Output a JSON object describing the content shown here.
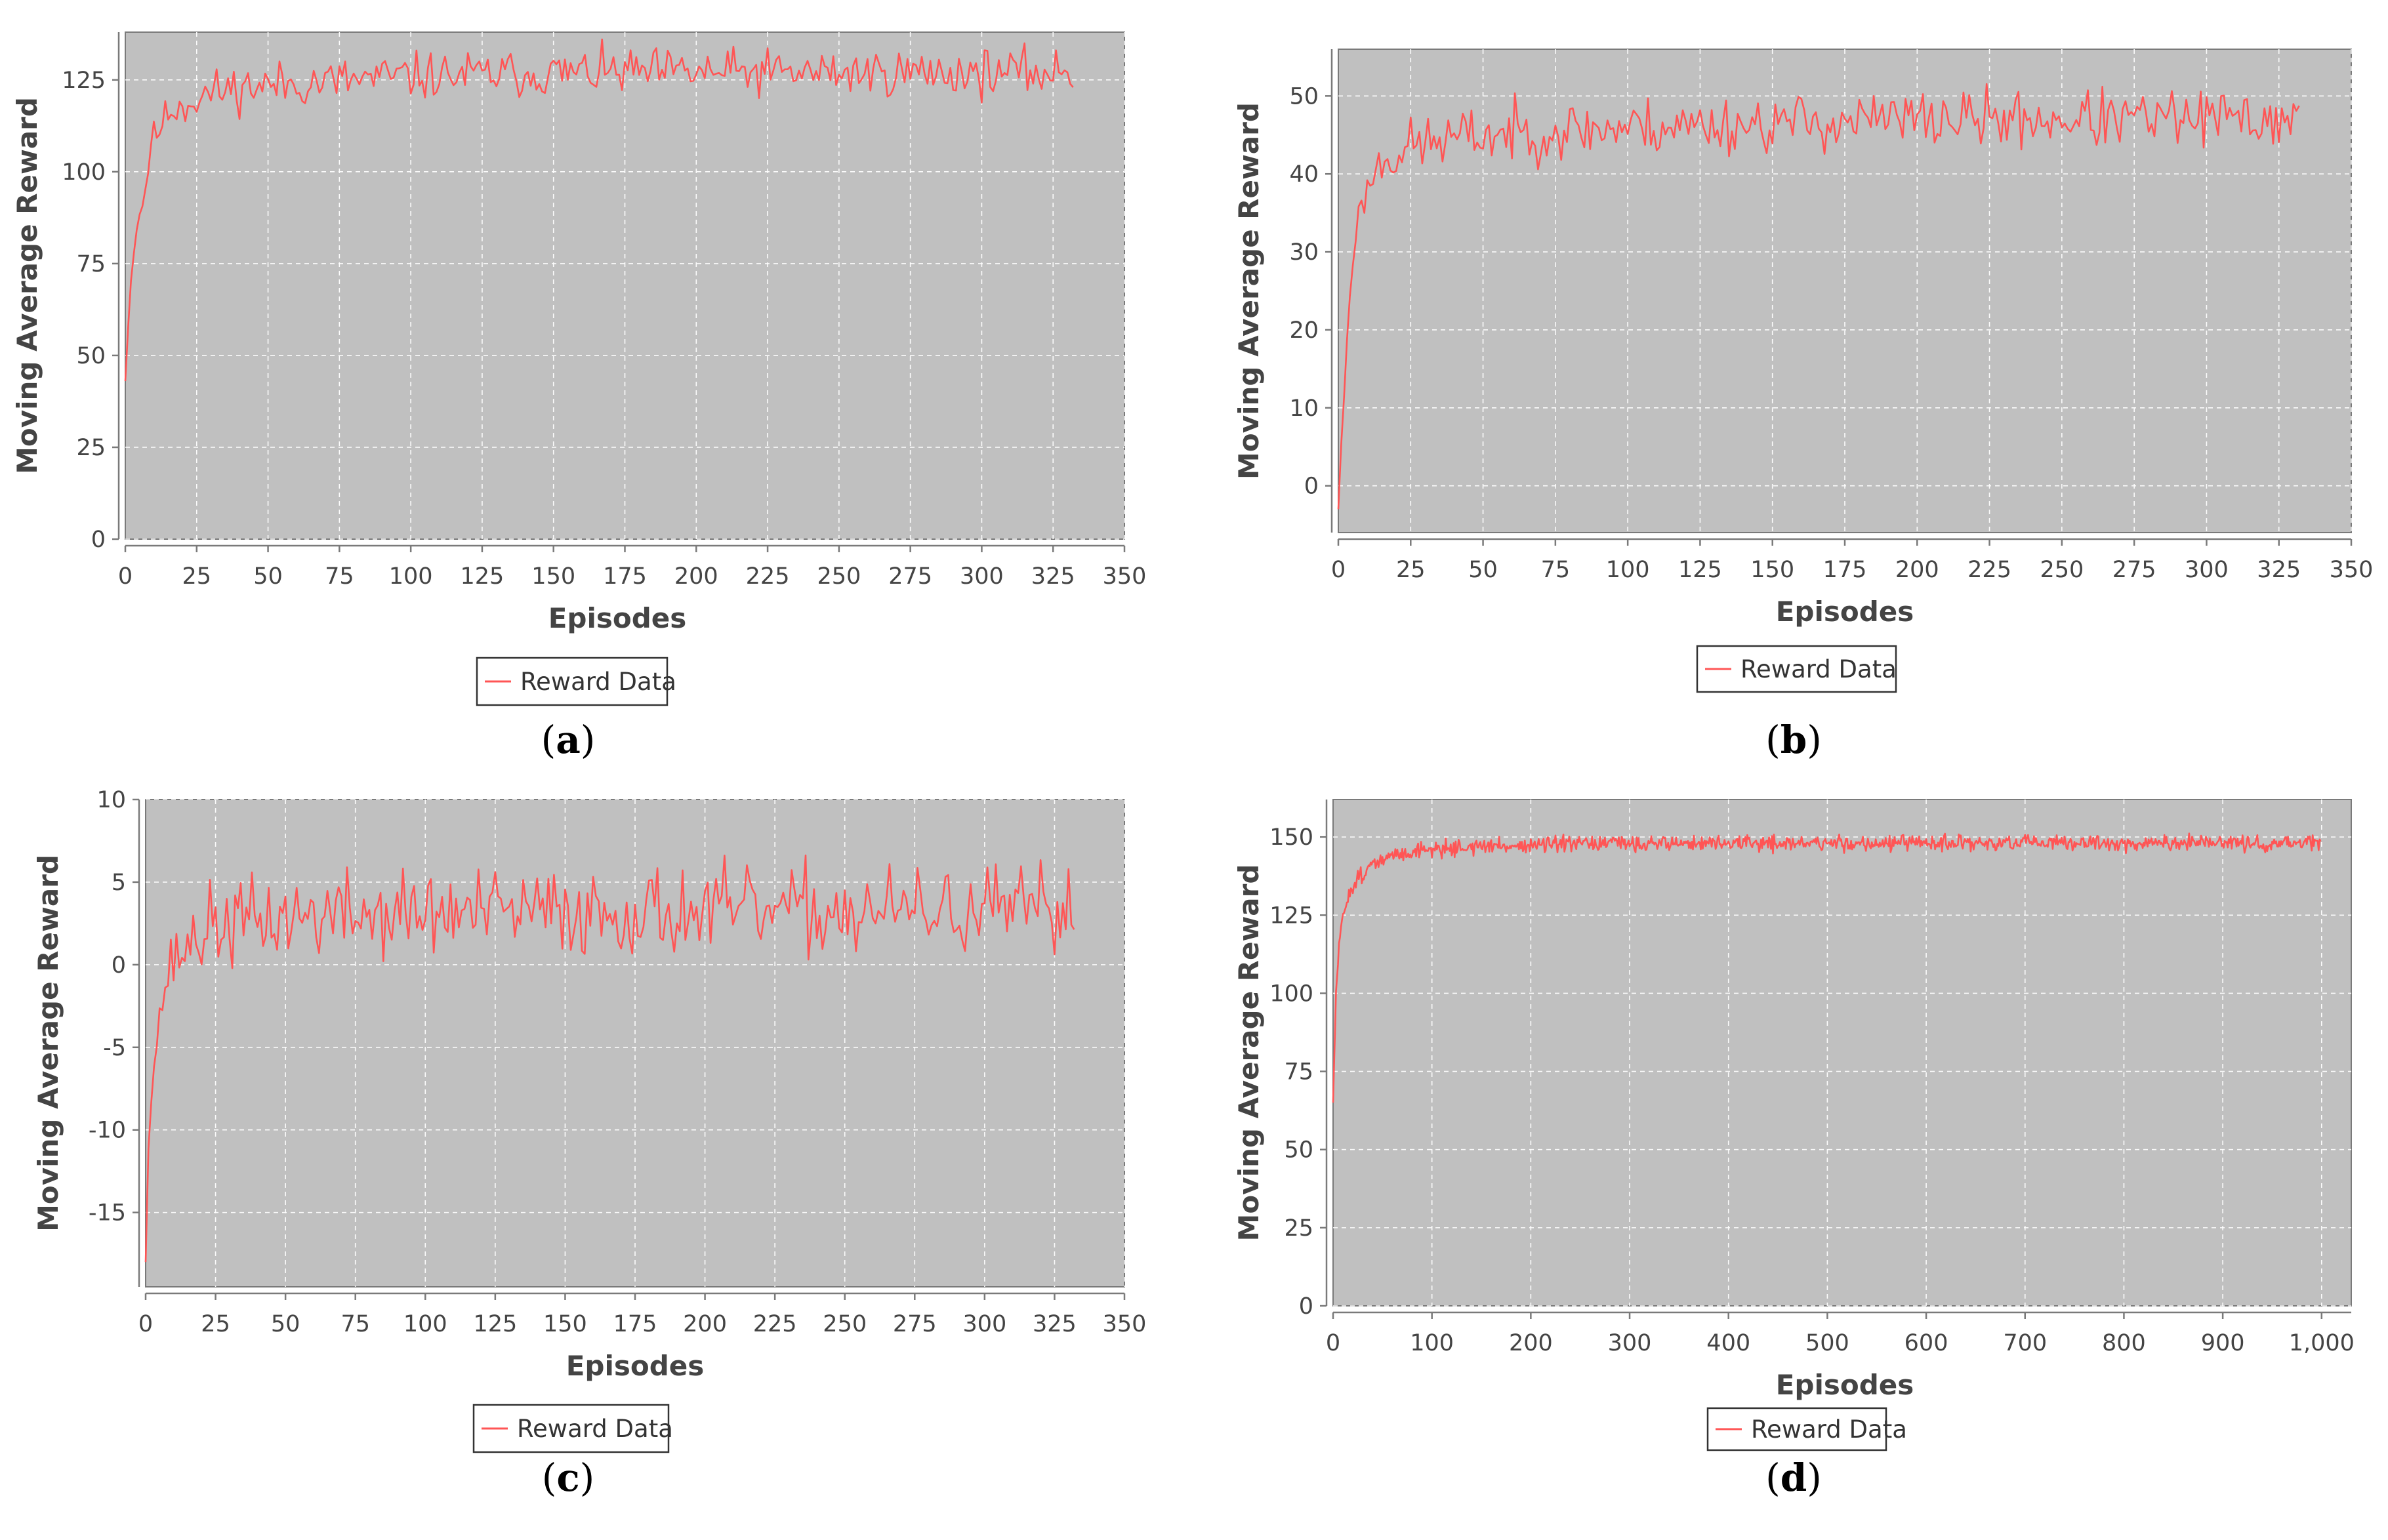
{
  "colors": {
    "plot_background": "#c0c0c0",
    "series": "#ff5555",
    "grid": "#ffffff",
    "axis_text": "#444444"
  },
  "chart_data": [
    {
      "id": "a",
      "type": "line",
      "caption_open": "(",
      "caption_letter": "a",
      "caption_close": ")",
      "xlabel": "Episodes",
      "ylabel": "Moving Average Reward",
      "xlim": [
        0,
        350
      ],
      "ylim": [
        0,
        138
      ],
      "xticks": [
        0,
        25,
        50,
        75,
        100,
        125,
        150,
        175,
        200,
        225,
        250,
        275,
        300,
        325,
        350
      ],
      "xtick_labels": [
        "0",
        "25",
        "50",
        "75",
        "100",
        "125",
        "150",
        "175",
        "200",
        "225",
        "250",
        "275",
        "300",
        "325",
        "350"
      ],
      "yticks": [
        0,
        25,
        50,
        75,
        100,
        125
      ],
      "ytick_labels": [
        "0",
        "25",
        "50",
        "75",
        "100",
        "125"
      ],
      "grid": true,
      "legend": "bottom-center",
      "series": [
        {
          "name": "Reward Data",
          "n": 333,
          "curve": [
            [
              0,
              43
            ],
            [
              2,
              72
            ],
            [
              4,
              85
            ],
            [
              7,
              95
            ],
            [
              9,
              108
            ],
            [
              12,
              112
            ],
            [
              16,
              117
            ],
            [
              22,
              119
            ],
            [
              28,
              121
            ],
            [
              40,
              123
            ],
            [
              60,
              124
            ],
            [
              100,
              126
            ],
            [
              160,
              127
            ],
            [
              250,
              127
            ],
            [
              333,
              127
            ]
          ],
          "noise": 5.5,
          "seed": 11
        }
      ]
    },
    {
      "id": "b",
      "type": "line",
      "caption_open": "(",
      "caption_letter": "b",
      "caption_close": ")",
      "xlabel": "Episodes",
      "ylabel": "Moving Average Reward",
      "xlim": [
        0,
        350
      ],
      "ylim": [
        -6,
        56
      ],
      "xticks": [
        0,
        25,
        50,
        75,
        100,
        125,
        150,
        175,
        200,
        225,
        250,
        275,
        300,
        325,
        350
      ],
      "xtick_labels": [
        "0",
        "25",
        "50",
        "75",
        "100",
        "125",
        "150",
        "175",
        "200",
        "225",
        "250",
        "275",
        "300",
        "325",
        "350"
      ],
      "yticks": [
        0,
        10,
        20,
        30,
        40,
        50
      ],
      "ytick_labels": [
        "0",
        "10",
        "20",
        "30",
        "40",
        "50"
      ],
      "grid": true,
      "legend": "bottom-center",
      "series": [
        {
          "name": "Reward Data",
          "n": 333,
          "curve": [
            [
              0,
              -3
            ],
            [
              2,
              12
            ],
            [
              4,
              25
            ],
            [
              6,
              33
            ],
            [
              9,
              37
            ],
            [
              12,
              40
            ],
            [
              16,
              42
            ],
            [
              22,
              43
            ],
            [
              30,
              44
            ],
            [
              50,
              45
            ],
            [
              100,
              46
            ],
            [
              200,
              47
            ],
            [
              333,
              47
            ]
          ],
          "noise": 3.2,
          "seed": 23
        }
      ]
    },
    {
      "id": "c",
      "type": "line",
      "caption_open": "(",
      "caption_letter": "c",
      "caption_close": ")",
      "xlabel": "Episodes",
      "ylabel": "Moving Average Reward",
      "xlim": [
        0,
        350
      ],
      "ylim": [
        -19.5,
        10
      ],
      "xticks": [
        0,
        25,
        50,
        75,
        100,
        125,
        150,
        175,
        200,
        225,
        250,
        275,
        300,
        325,
        350
      ],
      "xtick_labels": [
        "0",
        "25",
        "50",
        "75",
        "100",
        "125",
        "150",
        "175",
        "200",
        "225",
        "250",
        "275",
        "300",
        "325",
        "350"
      ],
      "yticks": [
        -15,
        -10,
        -5,
        0,
        5,
        10
      ],
      "ytick_labels": [
        "-15",
        "-10",
        "-5",
        "0",
        "5",
        "10"
      ],
      "grid": true,
      "legend": "bottom-center",
      "series": [
        {
          "name": "Reward Data",
          "n": 333,
          "curve": [
            [
              0,
              -18
            ],
            [
              1,
              -10
            ],
            [
              3,
              -6
            ],
            [
              6,
              -2
            ],
            [
              9,
              0
            ],
            [
              14,
              1
            ],
            [
              20,
              2
            ],
            [
              30,
              2.5
            ],
            [
              60,
              3
            ],
            [
              150,
              3.2
            ],
            [
              333,
              3.2
            ]
          ],
          "noise": 2.3,
          "seed": 37
        }
      ]
    },
    {
      "id": "d",
      "type": "line",
      "caption_open": "(",
      "caption_letter": "d",
      "caption_close": ")",
      "xlabel": "Episodes",
      "ylabel": "Moving Average Reward",
      "xlim": [
        0,
        1030
      ],
      "ylim": [
        0,
        162
      ],
      "xticks": [
        0,
        100,
        200,
        300,
        400,
        500,
        600,
        700,
        800,
        900,
        1000
      ],
      "xtick_labels": [
        "0",
        "100",
        "200",
        "300",
        "400",
        "500",
        "600",
        "700",
        "800",
        "900",
        "1,000"
      ],
      "yticks": [
        0,
        25,
        50,
        75,
        100,
        125,
        150
      ],
      "ytick_labels": [
        "0",
        "25",
        "50",
        "75",
        "100",
        "125",
        "150"
      ],
      "grid": true,
      "legend": "bottom-center",
      "series": [
        {
          "name": "Reward Data",
          "n": 1000,
          "curve": [
            [
              0,
              65
            ],
            [
              3,
              100
            ],
            [
              6,
              115
            ],
            [
              10,
              125
            ],
            [
              16,
              132
            ],
            [
              25,
              137
            ],
            [
              40,
              141
            ],
            [
              60,
              144
            ],
            [
              90,
              146
            ],
            [
              150,
              147
            ],
            [
              300,
              148
            ],
            [
              1000,
              148
            ]
          ],
          "noise": 2.2,
          "seed": 51
        }
      ]
    }
  ]
}
